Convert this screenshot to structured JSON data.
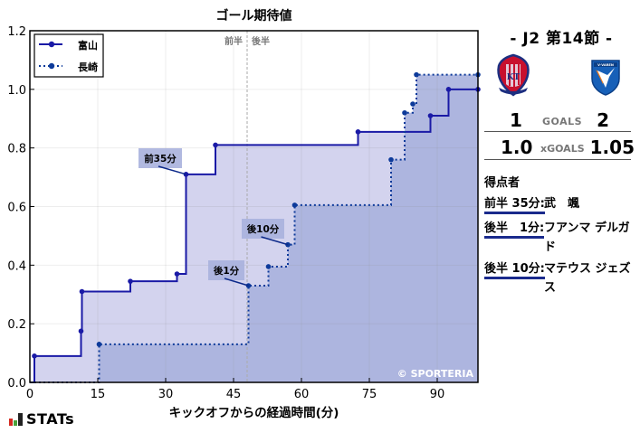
{
  "chart_data": {
    "type": "line",
    "subtype": "step",
    "title": "ゴール期待値",
    "xlabel": "キックオフからの経過時間(分)",
    "ylabel": "",
    "xlim": [
      0,
      99
    ],
    "ylim": [
      0,
      1.2
    ],
    "xticks": [
      0,
      15,
      30,
      45,
      60,
      75,
      90
    ],
    "yticks": [
      0.0,
      0.2,
      0.4,
      0.6,
      0.8,
      1.0,
      1.2
    ],
    "ytick_labels": [
      "0.0",
      "0.2",
      "0.4",
      "0.6",
      "0.8",
      "1.0",
      "1.2"
    ],
    "grid": true,
    "legend_position": "upper left",
    "half_time_marker": {
      "x": 48,
      "left_label": "前半",
      "right_label": "後半"
    },
    "watermark": "© SPORTERIA",
    "series": [
      {
        "name": "富山",
        "style": "solid",
        "color": "#1a1aa6",
        "fill": "#d3d3ee",
        "points": [
          {
            "x": 0,
            "y": 0.0
          },
          {
            "x": 1,
            "y": 0.09
          },
          {
            "x": 11.3,
            "y": 0.175
          },
          {
            "x": 11.5,
            "y": 0.31
          },
          {
            "x": 22.2,
            "y": 0.345
          },
          {
            "x": 32.5,
            "y": 0.37
          },
          {
            "x": 34.5,
            "y": 0.71
          },
          {
            "x": 41,
            "y": 0.81
          },
          {
            "x": 72.5,
            "y": 0.855
          },
          {
            "x": 88.5,
            "y": 0.91
          },
          {
            "x": 92.5,
            "y": 1.0
          },
          {
            "x": 99,
            "y": 1.0
          }
        ],
        "goals": [
          {
            "x": 34.5,
            "y": 0.71,
            "label": "前35分"
          }
        ]
      },
      {
        "name": "長崎",
        "style": "dotted",
        "color": "#0d3a9a",
        "fill": "#a9b1dd",
        "points": [
          {
            "x": 0,
            "y": 0.0
          },
          {
            "x": 15.3,
            "y": 0.13
          },
          {
            "x": 48.3,
            "y": 0.33
          },
          {
            "x": 52.7,
            "y": 0.395
          },
          {
            "x": 57,
            "y": 0.47
          },
          {
            "x": 58.5,
            "y": 0.605
          },
          {
            "x": 79.8,
            "y": 0.76
          },
          {
            "x": 82.8,
            "y": 0.92
          },
          {
            "x": 84.6,
            "y": 0.95
          },
          {
            "x": 85.4,
            "y": 1.05
          },
          {
            "x": 99,
            "y": 1.05
          }
        ],
        "goals": [
          {
            "x": 48.3,
            "y": 0.33,
            "label": "後1分"
          },
          {
            "x": 57,
            "y": 0.47,
            "label": "後10分"
          }
        ]
      }
    ]
  },
  "panel": {
    "round": "- J2 第14節 -",
    "home_team": "富山",
    "away_team": "長崎",
    "home_goals": "1",
    "away_goals": "2",
    "goals_label": "GOALS",
    "home_xg": "1.0",
    "away_xg": "1.05",
    "xg_label": "xGOALS",
    "scorers_title": "得点者",
    "scorers": [
      {
        "time": "前半 35分:",
        "name": "武　颯"
      },
      {
        "time": "後半　1分:",
        "name": "フアンマ デルガド"
      },
      {
        "time": "後半 10分:",
        "name": "マテウス ジェズス"
      }
    ]
  },
  "footer": {
    "logo_text": "STATs"
  },
  "colors": {
    "home_line": "#1a1aa6",
    "away_line": "#0d3a9a",
    "home_fill": "#d3d3ee",
    "away_fill": "#a9b1dd",
    "annotation_bg": "#a9b1dd"
  }
}
